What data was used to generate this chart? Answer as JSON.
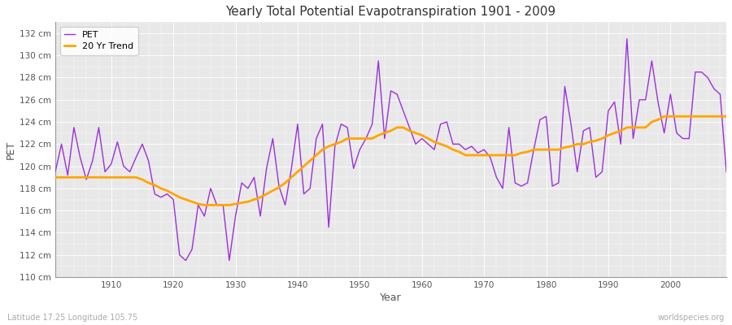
{
  "title": "Yearly Total Potential Evapotranspiration 1901 - 2009",
  "xlabel": "Year",
  "ylabel": "PET",
  "subtitle": "Latitude 17.25 Longitude 105.75",
  "watermark": "worldspecies.org",
  "pet_color": "#9B30D9",
  "trend_color": "#FFA500",
  "background_color": "#FFFFFF",
  "plot_bg_color": "#E8E8E8",
  "ylim": [
    110,
    133
  ],
  "xlim": [
    1901,
    2009
  ],
  "yticks": [
    110,
    112,
    114,
    116,
    118,
    120,
    122,
    124,
    126,
    128,
    130,
    132
  ],
  "xticks": [
    1910,
    1920,
    1930,
    1940,
    1950,
    1960,
    1970,
    1980,
    1990,
    2000
  ],
  "years": [
    1901,
    1902,
    1903,
    1904,
    1905,
    1906,
    1907,
    1908,
    1909,
    1910,
    1911,
    1912,
    1913,
    1914,
    1915,
    1916,
    1917,
    1918,
    1919,
    1920,
    1921,
    1922,
    1923,
    1924,
    1925,
    1926,
    1927,
    1928,
    1929,
    1930,
    1931,
    1932,
    1933,
    1934,
    1935,
    1936,
    1937,
    1938,
    1939,
    1940,
    1941,
    1942,
    1943,
    1944,
    1945,
    1946,
    1947,
    1948,
    1949,
    1950,
    1951,
    1952,
    1953,
    1954,
    1955,
    1956,
    1957,
    1958,
    1959,
    1960,
    1961,
    1962,
    1963,
    1964,
    1965,
    1966,
    1967,
    1968,
    1969,
    1970,
    1971,
    1972,
    1973,
    1974,
    1975,
    1976,
    1977,
    1978,
    1979,
    1980,
    1981,
    1982,
    1983,
    1984,
    1985,
    1986,
    1987,
    1988,
    1989,
    1990,
    1991,
    1992,
    1993,
    1994,
    1995,
    1996,
    1997,
    1998,
    1999,
    2000,
    2001,
    2002,
    2003,
    2004,
    2005,
    2006,
    2007,
    2008,
    2009
  ],
  "pet_values": [
    119.5,
    122.0,
    119.2,
    123.5,
    120.8,
    118.8,
    120.5,
    123.5,
    119.5,
    120.2,
    122.2,
    120.0,
    119.5,
    120.8,
    122.0,
    120.5,
    117.5,
    117.2,
    117.5,
    117.0,
    112.0,
    111.5,
    112.5,
    116.5,
    115.5,
    118.0,
    116.5,
    116.5,
    111.5,
    115.5,
    118.5,
    118.0,
    119.0,
    115.5,
    119.8,
    122.5,
    118.2,
    116.5,
    119.8,
    123.8,
    117.5,
    118.0,
    122.5,
    123.8,
    114.5,
    121.8,
    123.8,
    123.5,
    119.8,
    121.5,
    122.5,
    123.8,
    129.5,
    122.5,
    126.8,
    126.5,
    125.0,
    123.5,
    122.0,
    122.5,
    122.0,
    121.5,
    123.8,
    124.0,
    122.0,
    122.0,
    121.5,
    121.8,
    121.2,
    121.5,
    120.8,
    119.0,
    118.0,
    123.5,
    118.5,
    118.2,
    118.5,
    121.5,
    124.2,
    124.5,
    118.2,
    118.5,
    127.2,
    123.8,
    119.5,
    123.2,
    123.5,
    119.0,
    119.5,
    125.0,
    125.8,
    122.0,
    131.5,
    122.5,
    126.0,
    126.0,
    129.5,
    125.8,
    123.0,
    126.5,
    123.0,
    122.5,
    122.5,
    128.5,
    128.5,
    128.0,
    127.0,
    126.5,
    119.5
  ],
  "trend_values_y": [
    119.0,
    119.0,
    119.0,
    119.0,
    119.0,
    119.0,
    119.0,
    119.0,
    119.0,
    119.0,
    119.0,
    119.0,
    119.0,
    119.0,
    118.8,
    118.5,
    118.3,
    118.0,
    117.8,
    117.5,
    117.2,
    117.0,
    116.8,
    116.6,
    116.5,
    116.5,
    116.5,
    116.5,
    116.5,
    116.6,
    116.7,
    116.8,
    117.0,
    117.2,
    117.5,
    117.8,
    118.1,
    118.5,
    119.0,
    119.5,
    120.0,
    120.5,
    121.0,
    121.5,
    121.8,
    122.0,
    122.2,
    122.5,
    122.5,
    122.5,
    122.5,
    122.5,
    122.8,
    123.0,
    123.2,
    123.5,
    123.5,
    123.2,
    123.0,
    122.8,
    122.5,
    122.2,
    122.0,
    121.8,
    121.5,
    121.3,
    121.0,
    121.0,
    121.0,
    121.0,
    121.0,
    121.0,
    121.0,
    121.0,
    121.0,
    121.2,
    121.3,
    121.5,
    121.5,
    121.5,
    121.5,
    121.5,
    121.7,
    121.8,
    122.0,
    122.0,
    122.2,
    122.3,
    122.5,
    122.8,
    123.0,
    123.2,
    123.5,
    123.5,
    123.5,
    123.5,
    124.0,
    124.2,
    124.5,
    124.5,
    124.5,
    124.5,
    124.5,
    124.5,
    124.5,
    124.5,
    124.5,
    124.5,
    124.5
  ]
}
